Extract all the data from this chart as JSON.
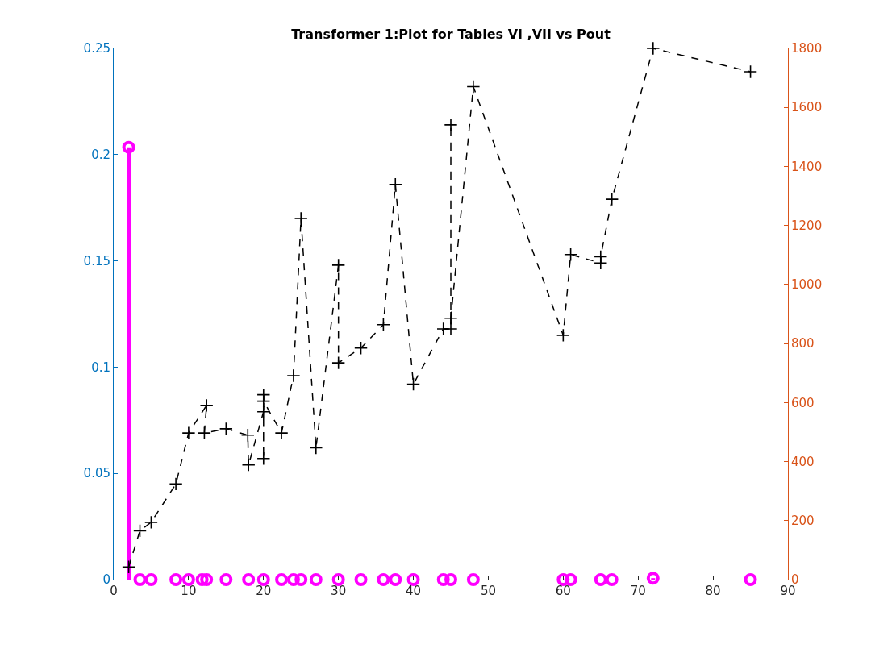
{
  "chart_data": {
    "type": "line",
    "title": "Transformer 1:Plot for Tables VI ,VII vs Pout",
    "xlim": [
      0,
      90
    ],
    "xticks": [
      0,
      10,
      20,
      30,
      40,
      50,
      60,
      70,
      80,
      90
    ],
    "ylim": [
      0,
      0.25
    ],
    "yticks": [
      0,
      0.05,
      0.1,
      0.15,
      0.2,
      0.25
    ],
    "y2lim": [
      0,
      1800
    ],
    "y2ticks": [
      0,
      200,
      400,
      600,
      800,
      1000,
      1200,
      1400,
      1600,
      1800
    ],
    "series": [
      {
        "color": "#000000",
        "marker": "cross",
        "line_style": "dashed",
        "x": [
          2,
          3.5,
          5,
          8.3,
          10,
          12.4,
          12.1,
          15,
          17.9,
          18,
          20,
          20,
          20,
          20,
          22.4,
          24,
          25,
          27,
          30,
          30,
          33,
          36,
          37.6,
          40,
          44,
          45,
          45,
          45,
          48,
          60,
          61,
          65,
          65,
          66.5,
          72,
          85
        ],
        "values": [
          0.006,
          0.023,
          0.027,
          0.045,
          0.069,
          0.082,
          0.069,
          0.071,
          0.068,
          0.054,
          0.079,
          0.057,
          0.087,
          0.084,
          0.069,
          0.096,
          0.17,
          0.062,
          0.148,
          0.102,
          0.109,
          0.12,
          0.186,
          0.092,
          0.118,
          0.118,
          0.214,
          0.123,
          0.232,
          0.115,
          0.153,
          0.149,
          0.152,
          0.179,
          0.25,
          0.239
        ]
      },
      {
        "type": "lollipop",
        "axis": "y2",
        "color": "#ff00ff",
        "marker": "circle",
        "x": [
          2,
          3.5,
          5,
          8.3,
          10,
          11.8,
          12.4,
          15,
          18,
          20,
          22.4,
          24,
          25,
          27,
          30,
          33,
          36,
          37.6,
          40,
          44,
          45,
          48,
          60,
          61,
          65,
          66.5,
          72,
          85
        ],
        "values": [
          1465,
          0,
          0,
          0,
          0,
          0,
          0,
          0,
          0,
          0,
          0,
          0,
          0,
          0,
          0,
          0,
          0,
          0,
          0,
          0,
          0,
          0,
          0,
          0,
          0,
          0,
          5,
          0
        ]
      }
    ]
  }
}
